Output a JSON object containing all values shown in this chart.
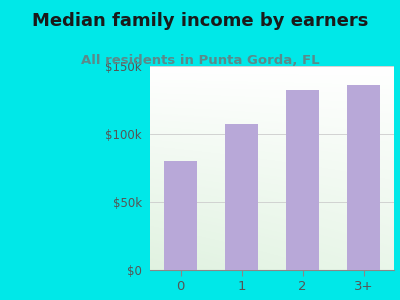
{
  "categories": [
    "0",
    "1",
    "2",
    "3+"
  ],
  "values": [
    80000,
    107000,
    132000,
    136000
  ],
  "bar_color": "#b8a8d8",
  "title": "Median family income by earners",
  "subtitle": "All residents in Punta Gorda, FL",
  "title_color": "#1a1a1a",
  "subtitle_color": "#5a8a8a",
  "background_color": "#00e8e8",
  "ylim": [
    0,
    150000
  ],
  "yticks": [
    0,
    50000,
    100000,
    150000
  ],
  "ytick_labels": [
    "$0",
    "$50k",
    "$100k",
    "$150k"
  ],
  "title_fontsize": 13,
  "subtitle_fontsize": 9.5
}
